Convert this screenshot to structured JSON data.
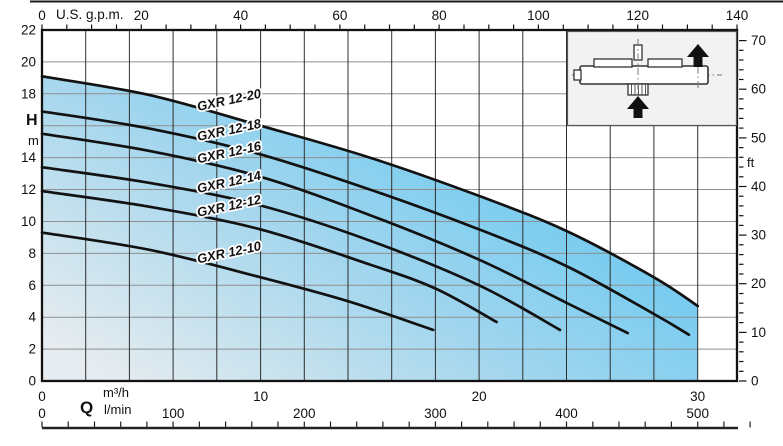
{
  "chart_data": {
    "type": "line",
    "title": "",
    "legend_position": "labels-on-curves",
    "grid": true,
    "x_axes": {
      "gpm": {
        "unit": "U.S. g.p.m.",
        "tick_labels": [
          0,
          20,
          40,
          60,
          80,
          100,
          120,
          140
        ],
        "minor_tick_step": 5,
        "range": [
          0,
          140
        ]
      },
      "m3h": {
        "letter": "Q",
        "unit": "m³/h",
        "tick_labels": [
          0,
          10,
          20,
          30
        ],
        "grid_step": 2,
        "range": [
          0,
          31.8
        ]
      },
      "lmin": {
        "unit": "l/min",
        "tick_labels": [
          0,
          100,
          200,
          300,
          400,
          500
        ],
        "minor_tick_step": 20,
        "tick_extent": 540
      }
    },
    "y_axes": {
      "meters": {
        "letter": "H",
        "unit": "m",
        "tick_labels": [
          22,
          20,
          18,
          14,
          12,
          10,
          8,
          6,
          4,
          2,
          0
        ],
        "unit_label_replaces_tick": 16,
        "grid_step": 2,
        "range": [
          0,
          22
        ]
      },
      "feet": {
        "unit": "ft",
        "tick_labels": [
          70,
          60,
          50,
          40,
          30,
          20,
          10,
          0
        ],
        "minor_tick_step": 2,
        "range": [
          0,
          72.2
        ]
      }
    },
    "series": [
      {
        "name": "GXR 12-20",
        "points_m3h_m": [
          [
            0,
            19.1
          ],
          [
            5,
            17.9
          ],
          [
            10,
            16.0
          ],
          [
            15,
            14.0
          ],
          [
            20,
            11.6
          ],
          [
            24,
            9.4
          ],
          [
            28,
            6.5
          ],
          [
            30,
            4.7
          ]
        ]
      },
      {
        "name": "GXR 12-18",
        "points_m3h_m": [
          [
            0,
            16.9
          ],
          [
            5,
            15.8
          ],
          [
            10,
            14.2
          ],
          [
            15,
            12.0
          ],
          [
            20,
            9.5
          ],
          [
            24,
            7.2
          ],
          [
            28,
            4.2
          ],
          [
            29.6,
            2.9
          ]
        ]
      },
      {
        "name": "GXR 12-16",
        "points_m3h_m": [
          [
            0,
            15.5
          ],
          [
            5,
            14.4
          ],
          [
            10,
            12.8
          ],
          [
            15,
            10.4
          ],
          [
            20,
            7.6
          ],
          [
            24,
            4.9
          ],
          [
            26.8,
            3.0
          ]
        ]
      },
      {
        "name": "GXR 12-14",
        "points_m3h_m": [
          [
            0,
            13.4
          ],
          [
            5,
            12.4
          ],
          [
            10,
            11.0
          ],
          [
            15,
            8.8
          ],
          [
            20,
            6.0
          ],
          [
            23.7,
            3.2
          ]
        ]
      },
      {
        "name": "GXR 12-12",
        "points_m3h_m": [
          [
            0,
            11.9
          ],
          [
            5,
            10.9
          ],
          [
            10,
            9.5
          ],
          [
            15,
            7.3
          ],
          [
            18,
            5.8
          ],
          [
            20.8,
            3.7
          ]
        ]
      },
      {
        "name": "GXR 12-10",
        "points_m3h_m": [
          [
            0,
            9.3
          ],
          [
            5,
            8.2
          ],
          [
            10,
            6.5
          ],
          [
            14,
            5.0
          ],
          [
            17.9,
            3.2
          ]
        ]
      }
    ],
    "envelope_fill": {
      "bounded_above_by": "GXR 12-20",
      "right_boundary_m3h": 30
    },
    "colors": {
      "fill_gradient": [
        "#e6ecef",
        "#a3d6ee",
        "#4fc2f1"
      ],
      "curve": "#121212",
      "grid_vertical": "#2e2e2e",
      "grid_horizontal": "#8f8f8f",
      "axis": "#121212",
      "inset_background": "#f2f2f2"
    }
  }
}
